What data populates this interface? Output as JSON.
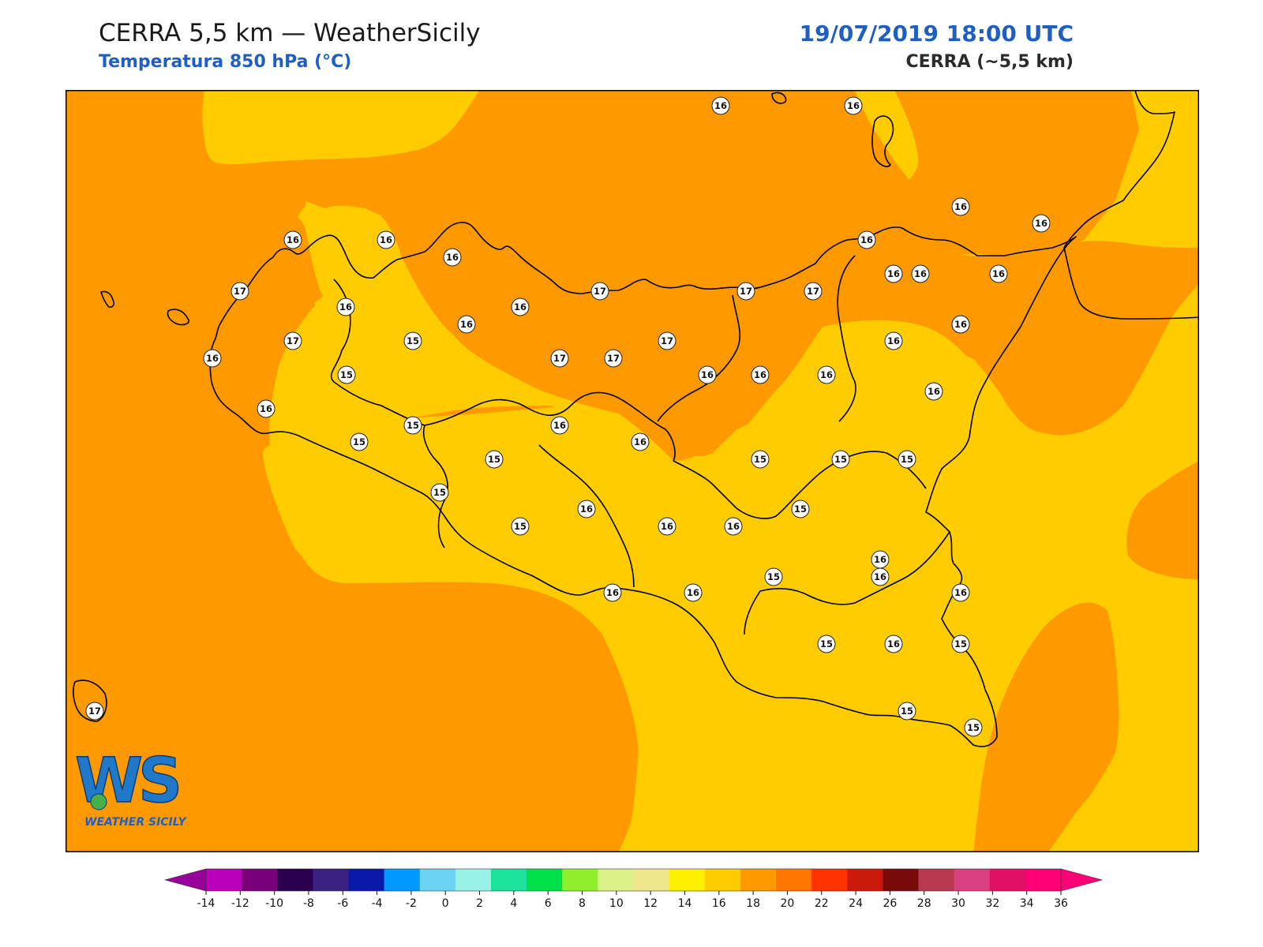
{
  "header": {
    "title": "CERRA 5,5 km — WeatherSicily",
    "subtitle": "Temperatura 850 hPa (°C)",
    "datetime": "19/07/2019 18:00 UTC",
    "model": "CERRA (~5,5 km)"
  },
  "logo": {
    "mark": "WS",
    "text": "WEATHER SICILY"
  },
  "map": {
    "fill_colors": {
      "t14_16": "#ffcc00",
      "t16_18": "#ff9900"
    },
    "coast_color": "#000000",
    "labels": [
      {
        "v": "16",
        "lon": 0
      },
      {
        "v": "16",
        "lon": 1
      },
      {
        "v": "16",
        "lon": 2
      },
      {
        "v": "16",
        "lon": 3
      },
      {
        "v": "16",
        "lon": 4
      },
      {
        "v": "16",
        "lon": 5
      },
      {
        "v": "16",
        "lon": 6
      },
      {
        "v": "16",
        "lon": 7
      },
      {
        "v": "16",
        "lon": 8
      },
      {
        "v": "17",
        "lon": 9
      },
      {
        "v": "16",
        "lon": 10
      },
      {
        "v": "16",
        "lon": 11
      },
      {
        "v": "17",
        "lon": 12
      },
      {
        "v": "17",
        "lon": 13
      },
      {
        "v": "17",
        "lon": 14
      },
      {
        "v": "16",
        "lon": 15
      },
      {
        "v": "16",
        "lon": 16
      },
      {
        "v": "16",
        "lon": 17
      },
      {
        "v": "15",
        "lon": 18
      },
      {
        "v": "16",
        "lon": 19
      },
      {
        "v": "17",
        "lon": 20
      },
      {
        "v": "17",
        "lon": 21
      },
      {
        "v": "16",
        "lon": 22
      },
      {
        "v": "17",
        "lon": 23
      },
      {
        "v": "17",
        "lon": 24
      },
      {
        "v": "16",
        "lon": 25
      },
      {
        "v": "16",
        "lon": 26
      },
      {
        "v": "16",
        "lon": 27
      },
      {
        "v": "15",
        "lon": 28
      },
      {
        "v": "16",
        "lon": 29
      },
      {
        "v": "16",
        "lon": 30
      },
      {
        "v": "16",
        "lon": 31
      },
      {
        "v": "16",
        "lon": 32
      },
      {
        "v": "15",
        "lon": 33
      },
      {
        "v": "16",
        "lon": 34
      },
      {
        "v": "15",
        "lon": 35
      },
      {
        "v": "16",
        "lon": 36
      },
      {
        "v": "15",
        "lon": 37
      },
      {
        "v": "15",
        "lon": 38
      },
      {
        "v": "15",
        "lon": 39
      },
      {
        "v": "15",
        "lon": 40
      },
      {
        "v": "16",
        "lon": 41
      },
      {
        "v": "15",
        "lon": 42
      },
      {
        "v": "15",
        "lon": 43
      },
      {
        "v": "16",
        "lon": 44
      },
      {
        "v": "16",
        "lon": 45
      },
      {
        "v": "16",
        "lon": 46
      },
      {
        "v": "15",
        "lon": 47
      },
      {
        "v": "15",
        "lon": 48
      },
      {
        "v": "16",
        "lon": 49
      },
      {
        "v": "16",
        "lon": 50
      },
      {
        "v": "16",
        "lon": 51
      },
      {
        "v": "16",
        "lon": 52
      },
      {
        "v": "15",
        "lon": 53
      },
      {
        "v": "16",
        "lon": 54
      },
      {
        "v": "15",
        "lon": 55
      },
      {
        "v": "15",
        "lon": 56
      },
      {
        "v": "17",
        "lon": 57
      },
      {
        "v": "15",
        "lon": 58
      }
    ]
  },
  "colorbar": {
    "colors": [
      "#bb00bb",
      "#7a007a",
      "#2a0050",
      "#3a2080",
      "#0a1aa8",
      "#0099ff",
      "#6dd3f5",
      "#99f2e6",
      "#1de29b",
      "#00e04a",
      "#8ef02a",
      "#dcf08a",
      "#f0e68c",
      "#fff000",
      "#ffcc00",
      "#ff9900",
      "#ff7700",
      "#ff3300",
      "#cc1a0a",
      "#7a0a0a",
      "#b83a4e",
      "#d84080",
      "#e01066",
      "#ff0077"
    ],
    "ticks": [
      "-14",
      "-12",
      "-10",
      "-8",
      "-6",
      "-4",
      "-2",
      "0",
      "2",
      "4",
      "6",
      "8",
      "10",
      "12",
      "14",
      "16",
      "18",
      "20",
      "22",
      "24",
      "26",
      "28",
      "30",
      "32",
      "34",
      "36"
    ],
    "min_arrow_color": "#990099",
    "max_arrow_color": "#ff0077"
  }
}
